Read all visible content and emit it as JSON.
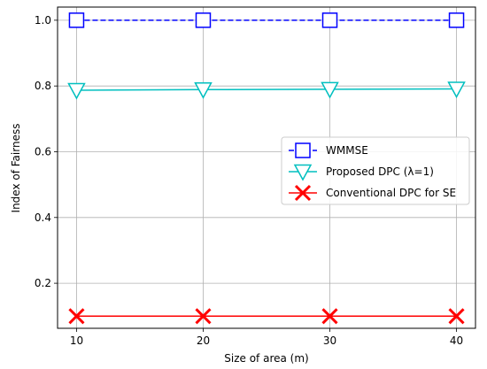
{
  "chart_data": {
    "type": "line",
    "title": "",
    "xlabel": "Size of area (m)",
    "ylabel": "Index of Fairness",
    "x": [
      10,
      20,
      30,
      40
    ],
    "xticks": [
      "10",
      "20",
      "30",
      "40"
    ],
    "yticks": [
      "0.2",
      "0.4",
      "0.6",
      "0.8",
      "1.0"
    ],
    "xlim": [
      8.5,
      41.5
    ],
    "ylim": [
      0.063,
      1.04
    ],
    "grid": true,
    "legend_position": "center-right",
    "series": [
      {
        "name": "WMMSE",
        "values": [
          1.0,
          1.0,
          1.0,
          1.0
        ],
        "color": "#0000ff",
        "marker": "square",
        "linestyle": "dashed"
      },
      {
        "name": "Proposed DPC (λ=1)",
        "values": [
          0.787,
          0.789,
          0.79,
          0.791
        ],
        "color": "#00bfbf",
        "marker": "triangle-down",
        "linestyle": "solid"
      },
      {
        "name": "Conventional DPC for SE",
        "values": [
          0.1,
          0.1,
          0.1,
          0.1
        ],
        "color": "#ff0000",
        "marker": "x",
        "linestyle": "solid"
      }
    ]
  }
}
